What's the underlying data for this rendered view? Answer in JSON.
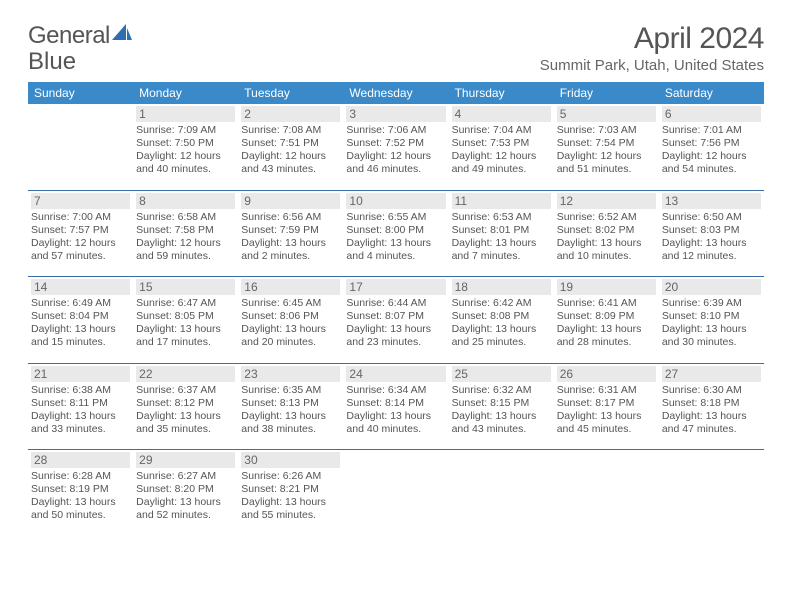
{
  "logo": {
    "part1": "General",
    "part2": "Blue"
  },
  "title": "April 2024",
  "subtitle": "Summit Park, Utah, United States",
  "colors": {
    "header_bg": "#3a89c9",
    "header_text": "#ffffff",
    "separator": "#3a6ea5",
    "daynum_bg": "#e9e9e9",
    "text": "#555555",
    "page_bg": "#ffffff",
    "logo_accent": "#2f6fb0"
  },
  "typography": {
    "title_fontsize": 30,
    "subtitle_fontsize": 15,
    "dow_fontsize": 12,
    "daynum_fontsize": 12,
    "info_fontsize": 10.5
  },
  "dow": [
    "Sunday",
    "Monday",
    "Tuesday",
    "Wednesday",
    "Thursday",
    "Friday",
    "Saturday"
  ],
  "weeks": [
    [
      null,
      {
        "n": "1",
        "sunrise": "7:09 AM",
        "sunset": "7:50 PM",
        "daylight": "12 hours and 40 minutes."
      },
      {
        "n": "2",
        "sunrise": "7:08 AM",
        "sunset": "7:51 PM",
        "daylight": "12 hours and 43 minutes."
      },
      {
        "n": "3",
        "sunrise": "7:06 AM",
        "sunset": "7:52 PM",
        "daylight": "12 hours and 46 minutes."
      },
      {
        "n": "4",
        "sunrise": "7:04 AM",
        "sunset": "7:53 PM",
        "daylight": "12 hours and 49 minutes."
      },
      {
        "n": "5",
        "sunrise": "7:03 AM",
        "sunset": "7:54 PM",
        "daylight": "12 hours and 51 minutes."
      },
      {
        "n": "6",
        "sunrise": "7:01 AM",
        "sunset": "7:56 PM",
        "daylight": "12 hours and 54 minutes."
      }
    ],
    [
      {
        "n": "7",
        "sunrise": "7:00 AM",
        "sunset": "7:57 PM",
        "daylight": "12 hours and 57 minutes."
      },
      {
        "n": "8",
        "sunrise": "6:58 AM",
        "sunset": "7:58 PM",
        "daylight": "12 hours and 59 minutes."
      },
      {
        "n": "9",
        "sunrise": "6:56 AM",
        "sunset": "7:59 PM",
        "daylight": "13 hours and 2 minutes."
      },
      {
        "n": "10",
        "sunrise": "6:55 AM",
        "sunset": "8:00 PM",
        "daylight": "13 hours and 4 minutes."
      },
      {
        "n": "11",
        "sunrise": "6:53 AM",
        "sunset": "8:01 PM",
        "daylight": "13 hours and 7 minutes."
      },
      {
        "n": "12",
        "sunrise": "6:52 AM",
        "sunset": "8:02 PM",
        "daylight": "13 hours and 10 minutes."
      },
      {
        "n": "13",
        "sunrise": "6:50 AM",
        "sunset": "8:03 PM",
        "daylight": "13 hours and 12 minutes."
      }
    ],
    [
      {
        "n": "14",
        "sunrise": "6:49 AM",
        "sunset": "8:04 PM",
        "daylight": "13 hours and 15 minutes."
      },
      {
        "n": "15",
        "sunrise": "6:47 AM",
        "sunset": "8:05 PM",
        "daylight": "13 hours and 17 minutes."
      },
      {
        "n": "16",
        "sunrise": "6:45 AM",
        "sunset": "8:06 PM",
        "daylight": "13 hours and 20 minutes."
      },
      {
        "n": "17",
        "sunrise": "6:44 AM",
        "sunset": "8:07 PM",
        "daylight": "13 hours and 23 minutes."
      },
      {
        "n": "18",
        "sunrise": "6:42 AM",
        "sunset": "8:08 PM",
        "daylight": "13 hours and 25 minutes."
      },
      {
        "n": "19",
        "sunrise": "6:41 AM",
        "sunset": "8:09 PM",
        "daylight": "13 hours and 28 minutes."
      },
      {
        "n": "20",
        "sunrise": "6:39 AM",
        "sunset": "8:10 PM",
        "daylight": "13 hours and 30 minutes."
      }
    ],
    [
      {
        "n": "21",
        "sunrise": "6:38 AM",
        "sunset": "8:11 PM",
        "daylight": "13 hours and 33 minutes."
      },
      {
        "n": "22",
        "sunrise": "6:37 AM",
        "sunset": "8:12 PM",
        "daylight": "13 hours and 35 minutes."
      },
      {
        "n": "23",
        "sunrise": "6:35 AM",
        "sunset": "8:13 PM",
        "daylight": "13 hours and 38 minutes."
      },
      {
        "n": "24",
        "sunrise": "6:34 AM",
        "sunset": "8:14 PM",
        "daylight": "13 hours and 40 minutes."
      },
      {
        "n": "25",
        "sunrise": "6:32 AM",
        "sunset": "8:15 PM",
        "daylight": "13 hours and 43 minutes."
      },
      {
        "n": "26",
        "sunrise": "6:31 AM",
        "sunset": "8:17 PM",
        "daylight": "13 hours and 45 minutes."
      },
      {
        "n": "27",
        "sunrise": "6:30 AM",
        "sunset": "8:18 PM",
        "daylight": "13 hours and 47 minutes."
      }
    ],
    [
      {
        "n": "28",
        "sunrise": "6:28 AM",
        "sunset": "8:19 PM",
        "daylight": "13 hours and 50 minutes."
      },
      {
        "n": "29",
        "sunrise": "6:27 AM",
        "sunset": "8:20 PM",
        "daylight": "13 hours and 52 minutes."
      },
      {
        "n": "30",
        "sunrise": "6:26 AM",
        "sunset": "8:21 PM",
        "daylight": "13 hours and 55 minutes."
      },
      null,
      null,
      null,
      null
    ]
  ],
  "labels": {
    "sunrise": "Sunrise:",
    "sunset": "Sunset:",
    "daylight": "Daylight:"
  }
}
